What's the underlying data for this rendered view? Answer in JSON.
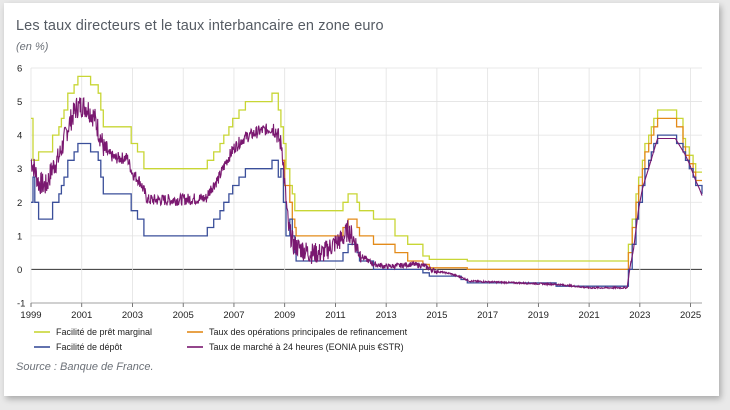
{
  "title": "Les taux directeurs et le taux interbancaire en zone euro",
  "subtitle": "(en %)",
  "source": "Source : Banque de France.",
  "chart_data": {
    "type": "line",
    "ylim": [
      -1,
      6
    ],
    "xlim": [
      1999,
      2025.45
    ],
    "yticks": [
      "6",
      "5",
      "4",
      "3",
      "2",
      "1",
      "0",
      "-1"
    ],
    "xticks": [
      "1999",
      "2001",
      "2003",
      "2005",
      "2007",
      "2009",
      "2011",
      "2013",
      "2015",
      "2017",
      "2019",
      "2021",
      "2023",
      "2025"
    ],
    "grid": true,
    "legend_position": "bottom",
    "series": [
      {
        "name": "Facilité de prêt marginal",
        "color": "#c8d635",
        "step": true,
        "points": [
          [
            1999.0,
            4.5
          ],
          [
            1999.08,
            3.25
          ],
          [
            1999.3,
            3.5
          ],
          [
            1999.85,
            4.0
          ],
          [
            2000.1,
            4.25
          ],
          [
            2000.2,
            4.5
          ],
          [
            2000.3,
            4.75
          ],
          [
            2000.45,
            5.25
          ],
          [
            2000.7,
            5.5
          ],
          [
            2000.85,
            5.75
          ],
          [
            2001.35,
            5.5
          ],
          [
            2001.65,
            5.25
          ],
          [
            2001.75,
            4.75
          ],
          [
            2001.85,
            4.25
          ],
          [
            2002.95,
            3.75
          ],
          [
            2003.2,
            3.5
          ],
          [
            2003.45,
            3.0
          ],
          [
            2005.95,
            3.25
          ],
          [
            2006.2,
            3.5
          ],
          [
            2006.45,
            3.75
          ],
          [
            2006.6,
            4.0
          ],
          [
            2006.8,
            4.25
          ],
          [
            2006.95,
            4.5
          ],
          [
            2007.2,
            4.75
          ],
          [
            2007.45,
            5.0
          ],
          [
            2008.5,
            5.25
          ],
          [
            2008.75,
            4.75
          ],
          [
            2008.85,
            4.25
          ],
          [
            2008.95,
            3.75
          ],
          [
            2009.05,
            3.0
          ],
          [
            2009.2,
            2.5
          ],
          [
            2009.3,
            2.25
          ],
          [
            2009.4,
            1.75
          ],
          [
            2011.3,
            2.0
          ],
          [
            2011.5,
            2.25
          ],
          [
            2011.85,
            2.0
          ],
          [
            2011.95,
            1.75
          ],
          [
            2012.5,
            1.5
          ],
          [
            2013.35,
            1.0
          ],
          [
            2013.85,
            0.75
          ],
          [
            2014.45,
            0.4
          ],
          [
            2014.7,
            0.3
          ],
          [
            2016.2,
            0.25
          ],
          [
            2022.55,
            0.75
          ],
          [
            2022.7,
            1.5
          ],
          [
            2022.85,
            2.25
          ],
          [
            2022.95,
            2.75
          ],
          [
            2023.1,
            3.25
          ],
          [
            2023.2,
            3.75
          ],
          [
            2023.35,
            4.0
          ],
          [
            2023.45,
            4.25
          ],
          [
            2023.55,
            4.5
          ],
          [
            2023.7,
            4.75
          ],
          [
            2024.45,
            4.5
          ],
          [
            2024.7,
            3.9
          ],
          [
            2024.8,
            3.65
          ],
          [
            2024.95,
            3.4
          ],
          [
            2025.1,
            3.15
          ],
          [
            2025.2,
            2.9
          ],
          [
            2025.45,
            2.9
          ]
        ]
      },
      {
        "name": "Taux des opérations principales de refinancement",
        "color": "#e38b1a",
        "step": true,
        "points": [
          [
            2008.9,
            3.25
          ],
          [
            2009.0,
            2.5
          ],
          [
            2009.2,
            2.0
          ],
          [
            2009.3,
            1.5
          ],
          [
            2009.4,
            1.25
          ],
          [
            2009.45,
            1.0
          ],
          [
            2011.3,
            1.25
          ],
          [
            2011.5,
            1.5
          ],
          [
            2011.85,
            1.25
          ],
          [
            2011.95,
            1.0
          ],
          [
            2012.5,
            0.75
          ],
          [
            2013.35,
            0.5
          ],
          [
            2013.85,
            0.25
          ],
          [
            2014.45,
            0.15
          ],
          [
            2014.7,
            0.05
          ],
          [
            2016.2,
            0.0
          ],
          [
            2022.55,
            0.5
          ],
          [
            2022.7,
            1.25
          ],
          [
            2022.85,
            2.0
          ],
          [
            2022.95,
            2.5
          ],
          [
            2023.1,
            3.0
          ],
          [
            2023.2,
            3.5
          ],
          [
            2023.35,
            3.75
          ],
          [
            2023.45,
            4.0
          ],
          [
            2023.55,
            4.25
          ],
          [
            2023.7,
            4.5
          ],
          [
            2024.45,
            4.25
          ],
          [
            2024.7,
            3.65
          ],
          [
            2024.8,
            3.4
          ],
          [
            2024.95,
            3.15
          ],
          [
            2025.1,
            2.9
          ],
          [
            2025.2,
            2.65
          ],
          [
            2025.45,
            2.65
          ]
        ]
      },
      {
        "name": "Facilité de dépôt",
        "color": "#3a4f9a",
        "step": true,
        "points": [
          [
            1999.0,
            2.0
          ],
          [
            1999.08,
            2.75
          ],
          [
            1999.15,
            2.0
          ],
          [
            1999.3,
            1.5
          ],
          [
            1999.85,
            2.0
          ],
          [
            2000.1,
            2.25
          ],
          [
            2000.2,
            2.5
          ],
          [
            2000.3,
            2.75
          ],
          [
            2000.45,
            3.25
          ],
          [
            2000.7,
            3.5
          ],
          [
            2000.85,
            3.75
          ],
          [
            2001.35,
            3.5
          ],
          [
            2001.65,
            3.25
          ],
          [
            2001.75,
            2.75
          ],
          [
            2001.85,
            2.25
          ],
          [
            2002.95,
            1.75
          ],
          [
            2003.2,
            1.5
          ],
          [
            2003.45,
            1.0
          ],
          [
            2005.95,
            1.25
          ],
          [
            2006.2,
            1.5
          ],
          [
            2006.45,
            1.75
          ],
          [
            2006.6,
            2.0
          ],
          [
            2006.8,
            2.25
          ],
          [
            2006.95,
            2.5
          ],
          [
            2007.2,
            2.75
          ],
          [
            2007.45,
            3.0
          ],
          [
            2008.5,
            3.25
          ],
          [
            2008.75,
            2.75
          ],
          [
            2008.85,
            3.0
          ],
          [
            2008.95,
            2.0
          ],
          [
            2009.05,
            1.0
          ],
          [
            2009.2,
            1.5
          ],
          [
            2009.3,
            1.0
          ],
          [
            2009.4,
            0.5
          ],
          [
            2009.45,
            0.25
          ],
          [
            2011.3,
            0.5
          ],
          [
            2011.5,
            0.75
          ],
          [
            2011.85,
            0.5
          ],
          [
            2011.95,
            0.25
          ],
          [
            2012.5,
            0.0
          ],
          [
            2014.45,
            -0.1
          ],
          [
            2014.7,
            -0.2
          ],
          [
            2015.95,
            -0.3
          ],
          [
            2016.2,
            -0.4
          ],
          [
            2019.7,
            -0.5
          ],
          [
            2022.55,
            0.0
          ],
          [
            2022.7,
            0.75
          ],
          [
            2022.85,
            1.5
          ],
          [
            2022.95,
            2.0
          ],
          [
            2023.1,
            2.5
          ],
          [
            2023.2,
            3.0
          ],
          [
            2023.35,
            3.25
          ],
          [
            2023.45,
            3.5
          ],
          [
            2023.55,
            3.75
          ],
          [
            2023.7,
            4.0
          ],
          [
            2024.45,
            3.75
          ],
          [
            2024.7,
            3.5
          ],
          [
            2024.8,
            3.25
          ],
          [
            2024.95,
            3.0
          ],
          [
            2025.1,
            2.75
          ],
          [
            2025.2,
            2.5
          ],
          [
            2025.45,
            2.25
          ]
        ]
      },
      {
        "name": "Taux de marché à 24 heures (EONIA puis €STR)",
        "color": "#7a1870",
        "step": false,
        "noise": true,
        "points": [
          [
            1999.0,
            3.2
          ],
          [
            1999.1,
            3.05
          ],
          [
            1999.3,
            2.55
          ],
          [
            1999.6,
            2.45
          ],
          [
            1999.85,
            3.0
          ],
          [
            2000.1,
            3.3
          ],
          [
            2000.3,
            3.8
          ],
          [
            2000.5,
            4.3
          ],
          [
            2000.8,
            4.8
          ],
          [
            2001.0,
            4.85
          ],
          [
            2001.2,
            4.8
          ],
          [
            2001.5,
            4.5
          ],
          [
            2001.7,
            4.0
          ],
          [
            2001.9,
            3.5
          ],
          [
            2002.3,
            3.3
          ],
          [
            2002.8,
            3.3
          ],
          [
            2003.0,
            2.85
          ],
          [
            2003.3,
            2.6
          ],
          [
            2003.6,
            2.05
          ],
          [
            2004.5,
            2.05
          ],
          [
            2005.9,
            2.1
          ],
          [
            2006.1,
            2.4
          ],
          [
            2006.4,
            2.7
          ],
          [
            2006.7,
            3.2
          ],
          [
            2007.0,
            3.6
          ],
          [
            2007.4,
            3.9
          ],
          [
            2008.0,
            4.1
          ],
          [
            2008.6,
            4.2
          ],
          [
            2008.9,
            3.6
          ],
          [
            2009.0,
            2.5
          ],
          [
            2009.15,
            1.2
          ],
          [
            2009.35,
            0.7
          ],
          [
            2010.0,
            0.45
          ],
          [
            2010.5,
            0.45
          ],
          [
            2010.9,
            0.7
          ],
          [
            2011.3,
            0.9
          ],
          [
            2011.5,
            1.15
          ],
          [
            2011.7,
            0.9
          ],
          [
            2012.0,
            0.4
          ],
          [
            2012.5,
            0.15
          ],
          [
            2013.0,
            0.08
          ],
          [
            2013.5,
            0.1
          ],
          [
            2014.0,
            0.15
          ],
          [
            2014.5,
            0.1
          ],
          [
            2014.9,
            -0.05
          ],
          [
            2015.5,
            -0.12
          ],
          [
            2016.0,
            -0.25
          ],
          [
            2016.3,
            -0.35
          ],
          [
            2019.8,
            -0.45
          ],
          [
            2021.0,
            -0.55
          ],
          [
            2022.5,
            -0.55
          ],
          [
            2022.6,
            0.0
          ],
          [
            2022.75,
            0.6
          ],
          [
            2022.95,
            1.8
          ],
          [
            2023.1,
            2.4
          ],
          [
            2023.3,
            2.9
          ],
          [
            2023.5,
            3.4
          ],
          [
            2023.7,
            3.9
          ],
          [
            2024.4,
            3.9
          ],
          [
            2024.6,
            3.65
          ],
          [
            2024.8,
            3.4
          ],
          [
            2024.95,
            3.15
          ],
          [
            2025.1,
            2.85
          ],
          [
            2025.2,
            2.65
          ],
          [
            2025.35,
            2.4
          ],
          [
            2025.45,
            2.2
          ]
        ]
      }
    ]
  }
}
